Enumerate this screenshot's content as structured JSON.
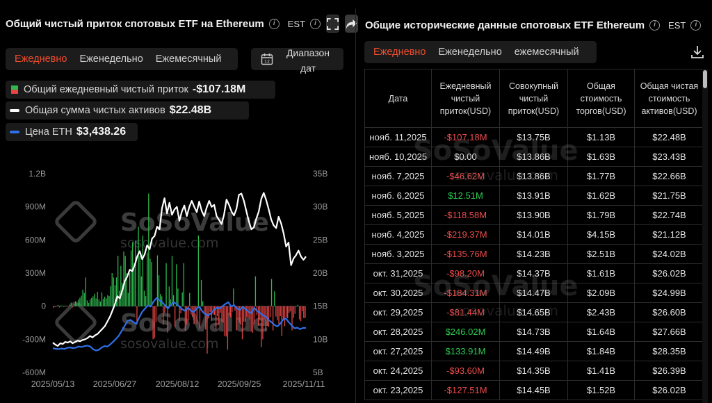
{
  "left": {
    "title": "Общий чистый приток спотовых ETF на Ethereum",
    "timezone": "EST",
    "tabs": [
      "Ежедневно",
      "Еженедельно",
      "Ежемесячный"
    ],
    "active_tab": 0,
    "range_button": "Диапазон дат",
    "legend": [
      {
        "label": "Общий ежедневный чистый приток",
        "value": "-$107.18M",
        "color": "#2db84d"
      },
      {
        "label": "Общая сумма чистых активов",
        "value": "$22.48B",
        "color": "#ffffff"
      },
      {
        "label": "Цена ETH",
        "value": "$3,438.26",
        "color": "#2f6fe8"
      }
    ],
    "watermark": {
      "brand": "SoSoValue",
      "url": "sosovalue.com"
    }
  },
  "chart_data": {
    "type": "bar+line",
    "x_ticks": [
      "2025/05/13",
      "2025/06/27",
      "2025/08/12",
      "2025/09/25",
      "2025/11/11"
    ],
    "left_axis": {
      "ticks": [
        "1.2B",
        "900M",
        "600M",
        "300M",
        "0",
        "-300M",
        "-600M"
      ],
      "range": [
        -600,
        1200
      ],
      "unit": "M USD"
    },
    "right_axis": {
      "ticks": [
        "35B",
        "30B",
        "25B",
        "20B",
        "15B",
        "10B",
        "5B"
      ],
      "range": [
        5,
        35
      ],
      "unit": "B USD"
    },
    "flows_millions": [
      -15,
      -8,
      -3,
      12,
      -12,
      8,
      5,
      -6,
      6,
      3,
      -2,
      14,
      32,
      -10,
      20,
      45,
      28,
      58,
      76,
      95,
      150,
      120,
      260,
      52,
      30,
      60,
      75,
      90,
      112,
      70,
      130,
      60,
      41,
      125,
      68,
      86,
      70,
      100,
      92,
      180,
      300,
      260,
      190,
      260,
      456,
      140,
      365,
      210,
      495,
      455,
      300,
      120,
      300,
      505,
      580,
      390,
      595,
      -165,
      720,
      455,
      270,
      640,
      140,
      92,
      485,
      1020,
      430,
      400,
      -300,
      -290,
      -145,
      460,
      280,
      110,
      90,
      -170,
      -60,
      390,
      -240,
      178,
      62,
      455,
      100,
      -188,
      380,
      160,
      -130,
      -65,
      125,
      390,
      -225,
      -168,
      -130,
      120,
      -70,
      -95,
      -162,
      -46,
      -158,
      640,
      -205,
      238,
      45,
      -65,
      -212,
      -430,
      -110,
      -52,
      -130,
      -75,
      -78,
      -210,
      -90,
      -165,
      -60,
      -140,
      -150,
      -270,
      -275,
      -395,
      -85,
      -100,
      -55,
      160,
      -40,
      -220,
      -120,
      -150,
      -165,
      -300,
      -140,
      -140,
      -100,
      -107,
      -120,
      -230,
      -240,
      -160,
      270,
      -80,
      -175,
      -120,
      -370,
      -300,
      -120,
      -230,
      -180,
      -185,
      -98,
      246,
      -220,
      134,
      -94,
      -128,
      -160,
      -90,
      -270,
      -120,
      -180,
      -100,
      -110,
      -60,
      -47,
      -219,
      -107,
      -70,
      0,
      13,
      -119,
      -136,
      -46,
      -107,
      -107
    ],
    "net_assets_billions": [
      9.5,
      9.2,
      9.0,
      9.4,
      9.3,
      9.6,
      9.5,
      9.7,
      9.4,
      9.6,
      9.8,
      9.7,
      9.9,
      10.0,
      10.2,
      10.5,
      10.3,
      10.6,
      10.8,
      11.2,
      11.6,
      12.0,
      12.7,
      13.4,
      14.3,
      15.3,
      16.5,
      16.2,
      17.4,
      18.8,
      19.5,
      20.5,
      20.3,
      21.2,
      22.5,
      23.3,
      22.1,
      22.8,
      24.2,
      23.6,
      25.2,
      25.6,
      27.0,
      26.6,
      29.8,
      31.3,
      29.0,
      30.6,
      28.8,
      29.6,
      30.0,
      27.9,
      29.3,
      30.2,
      28.6,
      30.0,
      30.9,
      30.0,
      29.2,
      30.8,
      29.4,
      28.6,
      29.9,
      30.9,
      30.0,
      30.3,
      28.6,
      28.0,
      27.4,
      28.8,
      31.1,
      30.3,
      29.3,
      28.7,
      29.7,
      31.8,
      32.0,
      30.9,
      29.3,
      27.8,
      26.6,
      26.9,
      28.2,
      29.3,
      31.2,
      32.1,
      31.0,
      29.6,
      28.1,
      27.2,
      26.8,
      28.5,
      27.5,
      26.0,
      24.0,
      24.6,
      21.2,
      22.2,
      22.7,
      23.4,
      22.5,
      22.0,
      22.5
    ],
    "eth_price_usd": [
      2520,
      2500,
      2480,
      2510,
      2490,
      2540,
      2560,
      2530,
      2550,
      2600,
      2580,
      2620,
      2640,
      2600,
      2480,
      2420,
      2450,
      2560,
      2620,
      2600,
      2700,
      2820,
      2950,
      3100,
      3320,
      3540,
      3760,
      3800,
      3700,
      3620,
      3900,
      4150,
      4300,
      4450,
      4400,
      4620,
      4780,
      4700,
      4600,
      4450,
      4310,
      4480,
      4600,
      4520,
      4400,
      4280,
      4200,
      4350,
      4220,
      4150,
      4320,
      4390,
      4180,
      4050,
      4000,
      4100,
      4250,
      4350,
      4320,
      4410,
      4520,
      4600,
      4400,
      4460,
      4320,
      4250,
      4380,
      4290,
      4180,
      4100,
      4350,
      4200,
      4120,
      4010,
      3950,
      3800,
      3700,
      3580,
      3500,
      3620,
      3800,
      3870,
      3700,
      3560,
      3420,
      3450,
      3380,
      3440,
      3438
    ],
    "title": "Общий чистый приток спотовых ETF на Ethereum"
  },
  "right": {
    "title": "Общие исторические данные спотовых ETF Ethereum",
    "timezone": "EST",
    "tabs": [
      "Ежедневно",
      "Еженедельно",
      "ежемесячный"
    ],
    "active_tab": 0,
    "columns": [
      "Дата",
      "Ежедневный чистый приток(USD)",
      "Совокупный чистый приток(USD)",
      "Общая стоимость торгов(USD)",
      "Общая чистая стоимость активов(USD)"
    ],
    "rows": [
      [
        "нояб. 11,2025",
        "-$107.18M",
        "$13.75B",
        "$1.13B",
        "$22.48B"
      ],
      [
        "нояб. 10,2025",
        "$0.00",
        "$13.86B",
        "$1.63B",
        "$23.43B"
      ],
      [
        "нояб. 7,2025",
        "-$46.62M",
        "$13.86B",
        "$1.77B",
        "$22.66B"
      ],
      [
        "нояб. 6,2025",
        "$12.51M",
        "$13.91B",
        "$1.62B",
        "$21.75B"
      ],
      [
        "нояб. 5,2025",
        "-$118.58M",
        "$13.90B",
        "$1.79B",
        "$22.74B"
      ],
      [
        "нояб. 4,2025",
        "-$219.37M",
        "$14.01B",
        "$4.15B",
        "$21.12B"
      ],
      [
        "нояб. 3,2025",
        "-$135.76M",
        "$14.23B",
        "$2.51B",
        "$24.02B"
      ],
      [
        "окт. 31,2025",
        "-$98.20M",
        "$14.37B",
        "$1.61B",
        "$26.02B"
      ],
      [
        "окт. 30,2025",
        "-$184.31M",
        "$14.47B",
        "$2.09B",
        "$24.99B"
      ],
      [
        "окт. 29,2025",
        "-$81.44M",
        "$14.65B",
        "$2.43B",
        "$26.60B"
      ],
      [
        "окт. 28,2025",
        "$246.02M",
        "$14.73B",
        "$1.64B",
        "$27.66B"
      ],
      [
        "окт. 27,2025",
        "$133.91M",
        "$14.49B",
        "$1.84B",
        "$28.35B"
      ],
      [
        "окт. 24,2025",
        "-$93.60M",
        "$14.35B",
        "$1.41B",
        "$26.39B"
      ],
      [
        "окт. 23,2025",
        "-$127.51M",
        "$14.45B",
        "$1.52B",
        "$26.02B"
      ]
    ],
    "watermark": {
      "brand": "SoSoValue",
      "url": "sosovalue.com"
    }
  }
}
